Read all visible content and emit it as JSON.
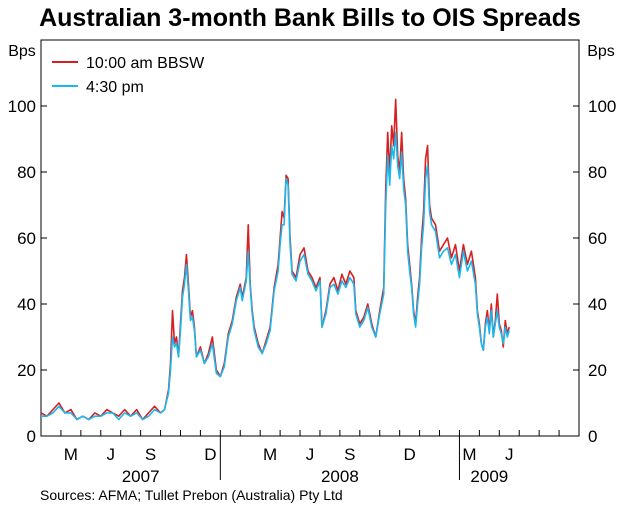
{
  "chart_data": {
    "type": "line",
    "title": "Australian 3-month Bank Bills to OIS Spreads",
    "ylabel_left": "Bps",
    "ylabel_right": "Bps",
    "ylim": [
      0,
      120
    ],
    "yticks": [
      0,
      20,
      40,
      60,
      80,
      100
    ],
    "xrange_months": [
      0,
      27
    ],
    "month_ticks": [
      {
        "label": "M",
        "month": 1.5
      },
      {
        "label": "J",
        "month": 3.5
      },
      {
        "label": "S",
        "month": 5.5
      },
      {
        "label": "D",
        "month": 8.5
      },
      {
        "label": "M",
        "month": 11.5
      },
      {
        "label": "J",
        "month": 13.5
      },
      {
        "label": "S",
        "month": 15.5
      },
      {
        "label": "D",
        "month": 18.5
      },
      {
        "label": "M",
        "month": 21.5
      },
      {
        "label": "J",
        "month": 23.5
      }
    ],
    "year_labels": [
      {
        "label": "2007",
        "month": 5.0
      },
      {
        "label": "2008",
        "month": 15.0
      },
      {
        "label": "2009",
        "month": 22.5
      }
    ],
    "year_separators": [
      9,
      21
    ],
    "legend": [
      {
        "name": "10:00 am BBSW",
        "color": "#d62020"
      },
      {
        "name": "4:30 pm",
        "color": "#1ab8ee"
      }
    ],
    "series": [
      {
        "name": "10:00 am BBSW",
        "color": "#d62020",
        "points": [
          [
            0.0,
            7
          ],
          [
            0.3,
            6
          ],
          [
            0.6,
            8
          ],
          [
            0.9,
            10
          ],
          [
            1.2,
            7
          ],
          [
            1.5,
            8
          ],
          [
            1.8,
            5
          ],
          [
            2.1,
            6
          ],
          [
            2.4,
            5
          ],
          [
            2.7,
            7
          ],
          [
            3.0,
            6
          ],
          [
            3.3,
            8
          ],
          [
            3.6,
            7
          ],
          [
            3.9,
            6
          ],
          [
            4.2,
            8
          ],
          [
            4.5,
            6
          ],
          [
            4.8,
            8
          ],
          [
            5.1,
            5
          ],
          [
            5.4,
            7
          ],
          [
            5.7,
            9
          ],
          [
            6.0,
            7
          ],
          [
            6.2,
            8
          ],
          [
            6.4,
            14
          ],
          [
            6.5,
            22
          ],
          [
            6.6,
            38
          ],
          [
            6.7,
            28
          ],
          [
            6.8,
            30
          ],
          [
            6.9,
            24
          ],
          [
            7.0,
            34
          ],
          [
            7.1,
            44
          ],
          [
            7.2,
            48
          ],
          [
            7.3,
            55
          ],
          [
            7.4,
            46
          ],
          [
            7.5,
            36
          ],
          [
            7.6,
            38
          ],
          [
            7.7,
            33
          ],
          [
            7.8,
            24
          ],
          [
            8.0,
            27
          ],
          [
            8.2,
            22
          ],
          [
            8.4,
            25
          ],
          [
            8.6,
            30
          ],
          [
            8.8,
            20
          ],
          [
            9.0,
            18
          ],
          [
            9.2,
            22
          ],
          [
            9.4,
            31
          ],
          [
            9.6,
            35
          ],
          [
            9.8,
            42
          ],
          [
            10.0,
            46
          ],
          [
            10.1,
            42
          ],
          [
            10.3,
            48
          ],
          [
            10.4,
            64
          ],
          [
            10.5,
            46
          ],
          [
            10.6,
            38
          ],
          [
            10.7,
            33
          ],
          [
            10.9,
            28
          ],
          [
            11.1,
            25
          ],
          [
            11.3,
            29
          ],
          [
            11.5,
            33
          ],
          [
            11.7,
            45
          ],
          [
            11.9,
            52
          ],
          [
            12.0,
            60
          ],
          [
            12.1,
            68
          ],
          [
            12.2,
            66
          ],
          [
            12.3,
            79
          ],
          [
            12.4,
            78
          ],
          [
            12.5,
            60
          ],
          [
            12.6,
            50
          ],
          [
            12.8,
            48
          ],
          [
            13.0,
            55
          ],
          [
            13.2,
            57
          ],
          [
            13.4,
            50
          ],
          [
            13.6,
            48
          ],
          [
            13.8,
            45
          ],
          [
            14.0,
            48
          ],
          [
            14.1,
            33
          ],
          [
            14.3,
            38
          ],
          [
            14.5,
            46
          ],
          [
            14.7,
            48
          ],
          [
            14.9,
            44
          ],
          [
            15.1,
            49
          ],
          [
            15.3,
            46
          ],
          [
            15.5,
            50
          ],
          [
            15.7,
            48
          ],
          [
            15.8,
            38
          ],
          [
            16.0,
            34
          ],
          [
            16.2,
            36
          ],
          [
            16.4,
            40
          ],
          [
            16.6,
            34
          ],
          [
            16.8,
            30
          ],
          [
            17.0,
            38
          ],
          [
            17.2,
            45
          ],
          [
            17.3,
            75
          ],
          [
            17.4,
            92
          ],
          [
            17.5,
            80
          ],
          [
            17.6,
            94
          ],
          [
            17.7,
            88
          ],
          [
            17.8,
            102
          ],
          [
            17.9,
            85
          ],
          [
            18.0,
            80
          ],
          [
            18.1,
            92
          ],
          [
            18.2,
            78
          ],
          [
            18.3,
            72
          ],
          [
            18.4,
            58
          ],
          [
            18.5,
            52
          ],
          [
            18.6,
            46
          ],
          [
            18.7,
            38
          ],
          [
            18.8,
            34
          ],
          [
            18.9,
            42
          ],
          [
            19.0,
            48
          ],
          [
            19.1,
            60
          ],
          [
            19.2,
            68
          ],
          [
            19.3,
            84
          ],
          [
            19.4,
            88
          ],
          [
            19.5,
            70
          ],
          [
            19.6,
            66
          ],
          [
            19.8,
            64
          ],
          [
            20.0,
            56
          ],
          [
            20.2,
            58
          ],
          [
            20.4,
            60
          ],
          [
            20.6,
            54
          ],
          [
            20.8,
            58
          ],
          [
            21.0,
            50
          ],
          [
            21.2,
            58
          ],
          [
            21.4,
            52
          ],
          [
            21.6,
            56
          ],
          [
            21.8,
            48
          ],
          [
            21.9,
            38
          ],
          [
            22.0,
            34
          ],
          [
            22.1,
            28
          ],
          [
            22.2,
            26
          ],
          [
            22.3,
            34
          ],
          [
            22.4,
            38
          ],
          [
            22.5,
            32
          ],
          [
            22.6,
            40
          ],
          [
            22.7,
            30
          ],
          [
            22.8,
            35
          ],
          [
            22.9,
            43
          ],
          [
            23.0,
            34
          ],
          [
            23.1,
            32
          ],
          [
            23.2,
            27
          ],
          [
            23.3,
            35
          ],
          [
            23.4,
            31
          ],
          [
            23.5,
            33
          ]
        ]
      },
      {
        "name": "4:30 pm",
        "color": "#1ab8ee",
        "points": [
          [
            0.0,
            6
          ],
          [
            0.3,
            6
          ],
          [
            0.6,
            7
          ],
          [
            0.9,
            9
          ],
          [
            1.2,
            7
          ],
          [
            1.5,
            7
          ],
          [
            1.8,
            5
          ],
          [
            2.1,
            6
          ],
          [
            2.4,
            5
          ],
          [
            2.7,
            6
          ],
          [
            3.0,
            6
          ],
          [
            3.3,
            7
          ],
          [
            3.6,
            7
          ],
          [
            3.9,
            5
          ],
          [
            4.2,
            7
          ],
          [
            4.5,
            6
          ],
          [
            4.8,
            7
          ],
          [
            5.1,
            5
          ],
          [
            5.4,
            6
          ],
          [
            5.7,
            8
          ],
          [
            6.0,
            7
          ],
          [
            6.2,
            8
          ],
          [
            6.4,
            13
          ],
          [
            6.5,
            20
          ],
          [
            6.6,
            30
          ],
          [
            6.7,
            27
          ],
          [
            6.8,
            28
          ],
          [
            6.9,
            24
          ],
          [
            7.0,
            32
          ],
          [
            7.1,
            42
          ],
          [
            7.2,
            46
          ],
          [
            7.3,
            52
          ],
          [
            7.4,
            44
          ],
          [
            7.5,
            35
          ],
          [
            7.6,
            36
          ],
          [
            7.7,
            32
          ],
          [
            7.8,
            24
          ],
          [
            8.0,
            26
          ],
          [
            8.2,
            22
          ],
          [
            8.4,
            24
          ],
          [
            8.6,
            28
          ],
          [
            8.8,
            19
          ],
          [
            9.0,
            18
          ],
          [
            9.2,
            21
          ],
          [
            9.4,
            30
          ],
          [
            9.6,
            34
          ],
          [
            9.8,
            41
          ],
          [
            10.0,
            45
          ],
          [
            10.1,
            41
          ],
          [
            10.3,
            47
          ],
          [
            10.4,
            56
          ],
          [
            10.5,
            45
          ],
          [
            10.6,
            37
          ],
          [
            10.7,
            32
          ],
          [
            10.9,
            27
          ],
          [
            11.1,
            25
          ],
          [
            11.3,
            28
          ],
          [
            11.5,
            32
          ],
          [
            11.7,
            44
          ],
          [
            11.9,
            50
          ],
          [
            12.0,
            58
          ],
          [
            12.1,
            64
          ],
          [
            12.2,
            64
          ],
          [
            12.3,
            78
          ],
          [
            12.4,
            76
          ],
          [
            12.5,
            58
          ],
          [
            12.6,
            49
          ],
          [
            12.8,
            47
          ],
          [
            13.0,
            53
          ],
          [
            13.2,
            55
          ],
          [
            13.4,
            49
          ],
          [
            13.6,
            47
          ],
          [
            13.8,
            44
          ],
          [
            14.0,
            47
          ],
          [
            14.1,
            33
          ],
          [
            14.3,
            37
          ],
          [
            14.5,
            45
          ],
          [
            14.7,
            46
          ],
          [
            14.9,
            43
          ],
          [
            15.1,
            47
          ],
          [
            15.3,
            45
          ],
          [
            15.5,
            48
          ],
          [
            15.7,
            46
          ],
          [
            15.8,
            37
          ],
          [
            16.0,
            33
          ],
          [
            16.2,
            35
          ],
          [
            16.4,
            39
          ],
          [
            16.6,
            33
          ],
          [
            16.8,
            30
          ],
          [
            17.0,
            37
          ],
          [
            17.2,
            43
          ],
          [
            17.3,
            70
          ],
          [
            17.4,
            85
          ],
          [
            17.5,
            76
          ],
          [
            17.6,
            88
          ],
          [
            17.7,
            84
          ],
          [
            17.8,
            92
          ],
          [
            17.9,
            82
          ],
          [
            18.0,
            78
          ],
          [
            18.1,
            86
          ],
          [
            18.2,
            75
          ],
          [
            18.3,
            70
          ],
          [
            18.4,
            56
          ],
          [
            18.5,
            50
          ],
          [
            18.6,
            45
          ],
          [
            18.7,
            37
          ],
          [
            18.8,
            33
          ],
          [
            18.9,
            40
          ],
          [
            19.0,
            46
          ],
          [
            19.1,
            57
          ],
          [
            19.2,
            64
          ],
          [
            19.3,
            78
          ],
          [
            19.4,
            82
          ],
          [
            19.5,
            68
          ],
          [
            19.6,
            64
          ],
          [
            19.8,
            62
          ],
          [
            20.0,
            54
          ],
          [
            20.2,
            56
          ],
          [
            20.4,
            57
          ],
          [
            20.6,
            52
          ],
          [
            20.8,
            55
          ],
          [
            21.0,
            48
          ],
          [
            21.2,
            56
          ],
          [
            21.4,
            50
          ],
          [
            21.6,
            53
          ],
          [
            21.8,
            46
          ],
          [
            21.9,
            37
          ],
          [
            22.0,
            33
          ],
          [
            22.1,
            28
          ],
          [
            22.2,
            26
          ],
          [
            22.3,
            33
          ],
          [
            22.4,
            36
          ],
          [
            22.5,
            31
          ],
          [
            22.6,
            38
          ],
          [
            22.7,
            30
          ],
          [
            22.8,
            34
          ],
          [
            22.9,
            38
          ],
          [
            23.0,
            33
          ],
          [
            23.1,
            31
          ],
          [
            23.2,
            28
          ],
          [
            23.3,
            33
          ],
          [
            23.4,
            30
          ],
          [
            23.5,
            32
          ]
        ]
      }
    ]
  },
  "source_text": "Sources:  AFMA; Tullet Prebon (Australia) Pty Ltd"
}
